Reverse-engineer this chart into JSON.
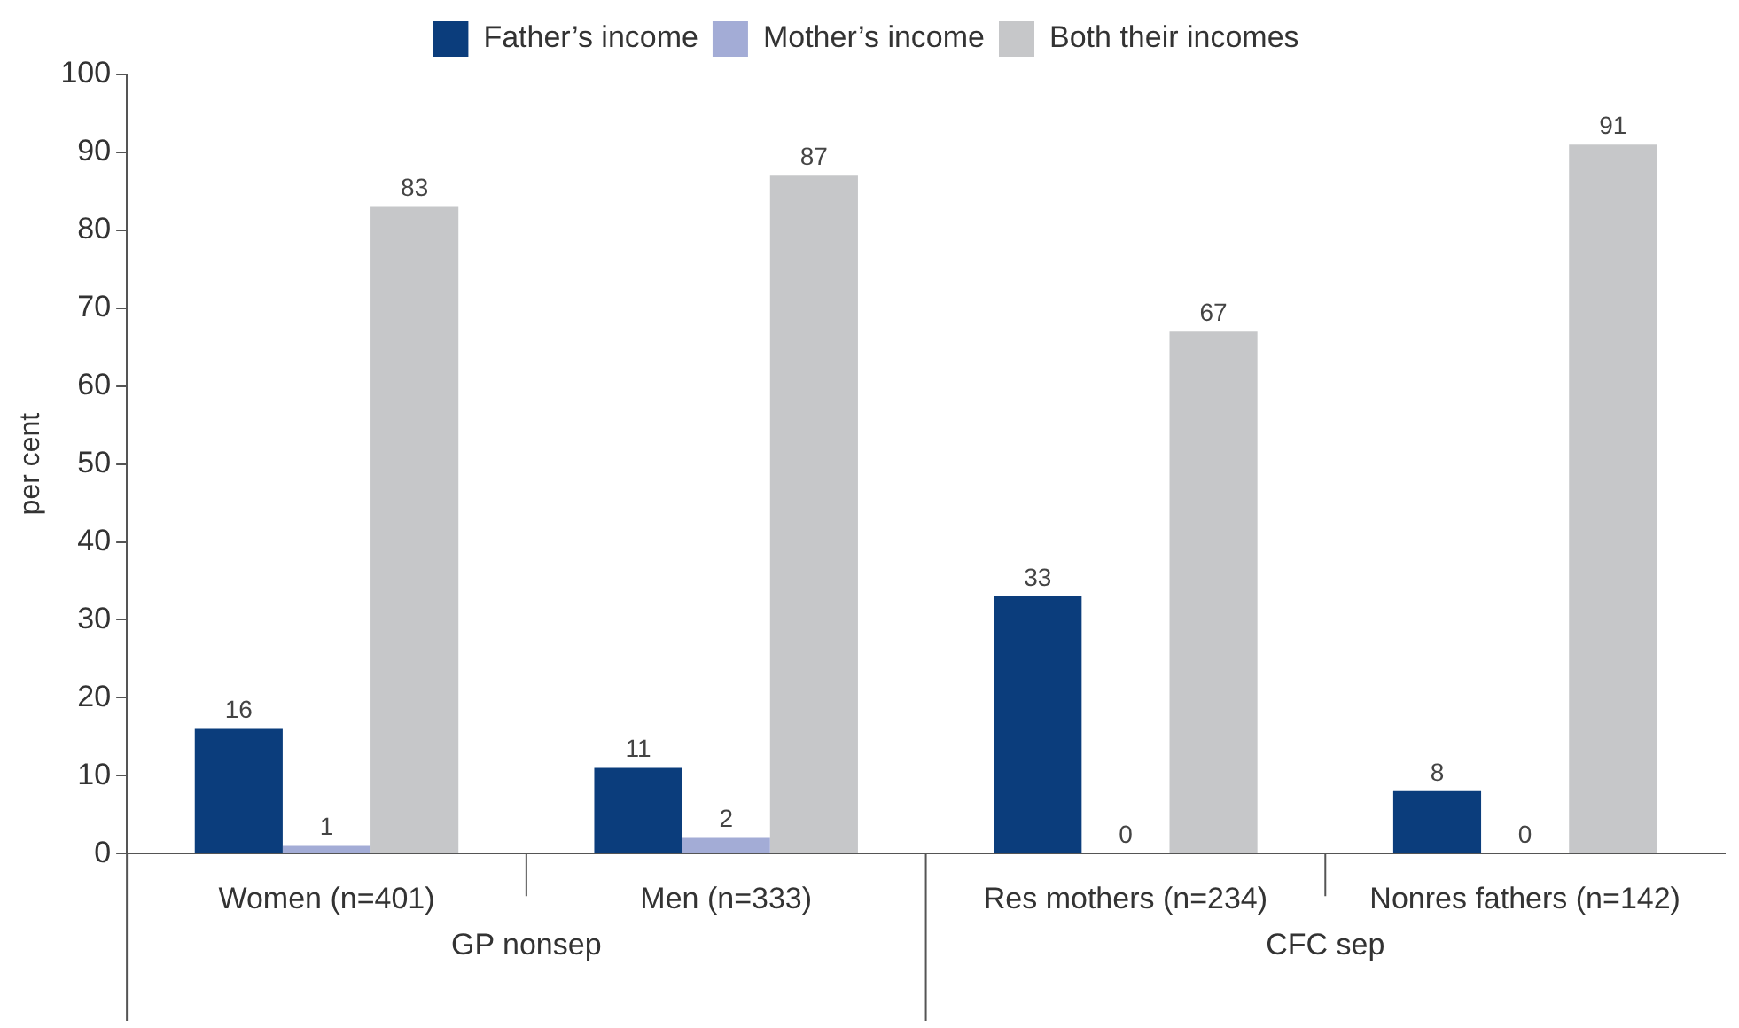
{
  "chart_data": {
    "type": "bar",
    "ylabel": "per cent",
    "categories": [
      "Women (n=401)",
      "Men (n=333)",
      "Res mothers (n=234)",
      "Nonres fathers (n=142)"
    ],
    "series": [
      {
        "name": "Father’s income",
        "color": "#0b3d7c",
        "values": [
          16,
          11,
          33,
          8
        ]
      },
      {
        "name": "Mother’s income",
        "color": "#a3acd6",
        "values": [
          1,
          2,
          0,
          0
        ]
      },
      {
        "name": "Both their incomes",
        "color": "#c6c7c9",
        "values": [
          83,
          87,
          67,
          91
        ]
      }
    ],
    "annotations": [
      "GP nonsep",
      "CFC sep"
    ],
    "ylim": [
      0,
      100
    ],
    "yticks": [
      0,
      10,
      20,
      30,
      40,
      50,
      60,
      70,
      80,
      90,
      100
    ],
    "grid": false,
    "legend": "top",
    "data_labels": true
  }
}
